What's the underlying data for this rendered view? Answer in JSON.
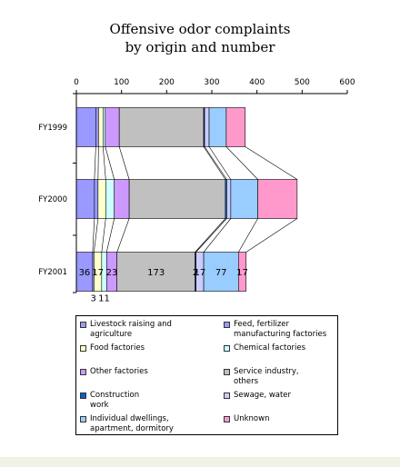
{
  "chart_data": {
    "type": "bar",
    "orientation": "horizontal",
    "stacked": true,
    "title_lines": [
      "Offensive odor complaints",
      "by origin and number"
    ],
    "xlim": [
      0,
      600
    ],
    "xticks": [
      0,
      100,
      200,
      300,
      400,
      500,
      600
    ],
    "xtick_labels": [
      "0",
      "100",
      "200",
      "300",
      "400",
      "500",
      "600"
    ],
    "categories": [
      "FY1999",
      "FY2000",
      "FY2001"
    ],
    "series": [
      {
        "name": "Livestock raising and agriculture",
        "color": "#9999ff",
        "values": [
          43,
          40,
          36
        ]
      },
      {
        "name": "Feed, fertilizer manufacturing factories",
        "color": "#9999ff",
        "values": [
          6,
          8,
          3
        ]
      },
      {
        "name": "Food factories",
        "color": "#ffffcc",
        "values": [
          10,
          17,
          17
        ]
      },
      {
        "name": "Chemical factories",
        "color": "#ccffff",
        "values": [
          5,
          19,
          11
        ]
      },
      {
        "name": "Other factories",
        "color": "#cc99ff",
        "values": [
          31,
          33,
          23
        ]
      },
      {
        "name": "Service industry, others",
        "color": "#c0c0c0",
        "values": [
          187,
          213,
          173
        ]
      },
      {
        "name": "Construction work",
        "color": "#0066cc",
        "values": [
          2,
          3,
          2
        ]
      },
      {
        "name": "Sewage, water",
        "color": "#ccccff",
        "values": [
          10,
          9,
          17
        ]
      },
      {
        "name": "Individual dwellings, apartment, dormitory",
        "color": "#99ccff",
        "values": [
          38,
          60,
          77
        ]
      },
      {
        "name": "Unknown",
        "color": "#ff99cc",
        "values": [
          42,
          87,
          17
        ]
      }
    ],
    "data_labels": [
      {
        "category": "FY2001",
        "series": 0,
        "text": "36",
        "position": "inside"
      },
      {
        "category": "FY2001",
        "series": 1,
        "text": "3",
        "position": "below"
      },
      {
        "category": "FY2001",
        "series": 2,
        "text": "17",
        "position": "inside"
      },
      {
        "category": "FY2001",
        "series": 3,
        "text": "11",
        "position": "below"
      },
      {
        "category": "FY2001",
        "series": 4,
        "text": "23",
        "position": "inside"
      },
      {
        "category": "FY2001",
        "series": 5,
        "text": "173",
        "position": "inside"
      },
      {
        "category": "FY2001",
        "series": 6,
        "text": "2",
        "position": "inside"
      },
      {
        "category": "FY2001",
        "series": 7,
        "text": "17",
        "position": "inside"
      },
      {
        "category": "FY2001",
        "series": 8,
        "text": "77",
        "position": "inside"
      },
      {
        "category": "FY2001",
        "series": 9,
        "text": "17",
        "position": "inside"
      }
    ],
    "series_lines": true,
    "grid": false,
    "legend_position": "bottom",
    "legend_entries": [
      {
        "label": "Livestock raising and\nagriculture",
        "color": "#9999ff"
      },
      {
        "label": "Feed, fertilizer\nmanufacturing factories",
        "color": "#9999ff"
      },
      {
        "label": "Food factories",
        "color": "#ffffcc"
      },
      {
        "label": "Chemical factories",
        "color": "#ccffff"
      },
      {
        "label": "Other factories",
        "color": "#cc99ff"
      },
      {
        "label": "Service industry,\nothers",
        "color": "#c0c0c0"
      },
      {
        "label": "Construction\nwork",
        "color": "#0066cc"
      },
      {
        "label": "Sewage, water",
        "color": "#ccccff"
      },
      {
        "label": "Individual dwellings,\napartment, dormitory",
        "color": "#99ccff"
      },
      {
        "label": "Unknown",
        "color": "#ff99cc"
      }
    ]
  }
}
